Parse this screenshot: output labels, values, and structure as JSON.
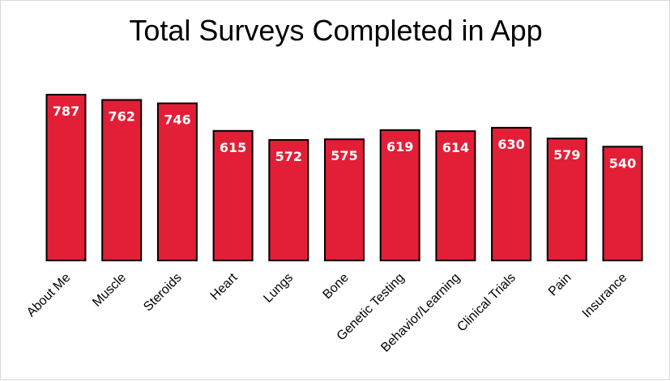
{
  "chart_data": {
    "type": "bar",
    "title": "Total Surveys Completed in App",
    "xlabel": "",
    "ylabel": "",
    "categories": [
      "About Me",
      "Muscle",
      "Steroids",
      "Heart",
      "Lungs",
      "Bone",
      "Genetic Testing",
      "Behavior/Learning",
      "Clinical Trials",
      "Pain",
      "Insurance"
    ],
    "values": [
      787,
      762,
      746,
      615,
      572,
      575,
      619,
      614,
      630,
      579,
      540
    ],
    "data_labels": [
      "787",
      "762",
      "746",
      "615",
      "572",
      "575",
      "619",
      "614",
      "630",
      "579",
      "540"
    ],
    "ylim": [
      0,
      800
    ],
    "grid": false,
    "legend": "none",
    "bar_color": "#E31E37",
    "bar_outline_color": "#000000",
    "data_label_color": "#FFFFFF",
    "tick_label_color": "#000000"
  }
}
